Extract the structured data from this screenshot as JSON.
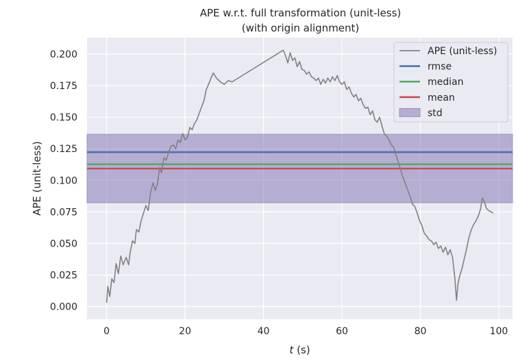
{
  "chart_data": {
    "type": "line",
    "title": "APE w.r.t. full transformation (unit-less)",
    "subtitle": "(with origin alignment)",
    "xlabel_italic": "t",
    "xlabel_rest": " (s)",
    "ylabel": "APE (unit-less)",
    "xlim": [
      -5,
      103.5
    ],
    "ylim": [
      -0.01,
      0.213
    ],
    "x_ticks": [
      0,
      20,
      40,
      60,
      80,
      100
    ],
    "y_ticks": [
      0.0,
      0.025,
      0.05,
      0.075,
      0.1,
      0.125,
      0.15,
      0.175,
      0.2
    ],
    "y_tick_labels": [
      "0.000",
      "0.025",
      "0.050",
      "0.075",
      "0.100",
      "0.125",
      "0.150",
      "0.175",
      "0.200"
    ],
    "grid": true,
    "legend_position": "top-right",
    "series": [
      {
        "name": "APE (unit-less)",
        "color": "#808080",
        "points": [
          [
            0.0,
            0.003
          ],
          [
            0.3,
            0.016
          ],
          [
            0.8,
            0.008
          ],
          [
            1.3,
            0.022
          ],
          [
            1.9,
            0.019
          ],
          [
            2.4,
            0.034
          ],
          [
            3.0,
            0.026
          ],
          [
            3.6,
            0.04
          ],
          [
            4.2,
            0.033
          ],
          [
            5.0,
            0.039
          ],
          [
            5.6,
            0.033
          ],
          [
            6.0,
            0.043
          ],
          [
            6.6,
            0.052
          ],
          [
            7.2,
            0.05
          ],
          [
            7.6,
            0.061
          ],
          [
            8.2,
            0.059
          ],
          [
            8.8,
            0.068
          ],
          [
            9.4,
            0.074
          ],
          [
            10.0,
            0.08
          ],
          [
            10.6,
            0.076
          ],
          [
            11.2,
            0.09
          ],
          [
            11.8,
            0.098
          ],
          [
            12.4,
            0.092
          ],
          [
            13.0,
            0.098
          ],
          [
            13.5,
            0.11
          ],
          [
            14.0,
            0.106
          ],
          [
            14.6,
            0.118
          ],
          [
            15.2,
            0.116
          ],
          [
            15.8,
            0.122
          ],
          [
            16.4,
            0.127
          ],
          [
            17.0,
            0.128
          ],
          [
            17.6,
            0.125
          ],
          [
            18.2,
            0.132
          ],
          [
            18.8,
            0.13
          ],
          [
            19.4,
            0.137
          ],
          [
            20.0,
            0.132
          ],
          [
            20.6,
            0.134
          ],
          [
            21.2,
            0.142
          ],
          [
            21.8,
            0.14
          ],
          [
            22.4,
            0.145
          ],
          [
            23.0,
            0.148
          ],
          [
            23.6,
            0.153
          ],
          [
            24.2,
            0.158
          ],
          [
            24.8,
            0.163
          ],
          [
            25.4,
            0.172
          ],
          [
            26.0,
            0.176
          ],
          [
            26.6,
            0.181
          ],
          [
            27.2,
            0.185
          ],
          [
            28.0,
            0.181
          ],
          [
            29.0,
            0.178
          ],
          [
            30.0,
            0.176
          ],
          [
            31.0,
            0.179
          ],
          [
            32.0,
            0.178
          ],
          [
            45.0,
            0.203
          ],
          [
            45.6,
            0.199
          ],
          [
            46.2,
            0.193
          ],
          [
            46.8,
            0.201
          ],
          [
            47.4,
            0.195
          ],
          [
            48.0,
            0.197
          ],
          [
            48.6,
            0.19
          ],
          [
            49.2,
            0.194
          ],
          [
            49.8,
            0.188
          ],
          [
            50.4,
            0.187
          ],
          [
            51.0,
            0.184
          ],
          [
            51.6,
            0.186
          ],
          [
            52.2,
            0.182
          ],
          [
            52.8,
            0.181
          ],
          [
            53.4,
            0.179
          ],
          [
            54.0,
            0.181
          ],
          [
            54.6,
            0.176
          ],
          [
            55.2,
            0.18
          ],
          [
            55.8,
            0.177
          ],
          [
            56.4,
            0.181
          ],
          [
            57.0,
            0.178
          ],
          [
            57.6,
            0.182
          ],
          [
            58.2,
            0.179
          ],
          [
            58.8,
            0.183
          ],
          [
            59.4,
            0.178
          ],
          [
            60.0,
            0.176
          ],
          [
            60.6,
            0.178
          ],
          [
            61.2,
            0.172
          ],
          [
            61.8,
            0.174
          ],
          [
            62.4,
            0.169
          ],
          [
            63.0,
            0.166
          ],
          [
            63.6,
            0.168
          ],
          [
            64.2,
            0.163
          ],
          [
            64.8,
            0.165
          ],
          [
            65.4,
            0.16
          ],
          [
            66.0,
            0.157
          ],
          [
            66.6,
            0.158
          ],
          [
            67.2,
            0.152
          ],
          [
            67.8,
            0.155
          ],
          [
            68.4,
            0.148
          ],
          [
            69.0,
            0.146
          ],
          [
            69.6,
            0.15
          ],
          [
            70.2,
            0.143
          ],
          [
            70.8,
            0.137
          ],
          [
            71.4,
            0.135
          ],
          [
            72.0,
            0.132
          ],
          [
            72.6,
            0.128
          ],
          [
            73.2,
            0.126
          ],
          [
            73.8,
            0.12
          ],
          [
            74.4,
            0.114
          ],
          [
            75.0,
            0.108
          ],
          [
            75.6,
            0.102
          ],
          [
            76.2,
            0.097
          ],
          [
            76.8,
            0.092
          ],
          [
            77.4,
            0.087
          ],
          [
            78.0,
            0.081
          ],
          [
            78.6,
            0.079
          ],
          [
            79.2,
            0.074
          ],
          [
            79.8,
            0.068
          ],
          [
            80.4,
            0.064
          ],
          [
            81.0,
            0.058
          ],
          [
            81.6,
            0.056
          ],
          [
            82.2,
            0.053
          ],
          [
            82.8,
            0.052
          ],
          [
            83.4,
            0.049
          ],
          [
            84.0,
            0.051
          ],
          [
            84.6,
            0.046
          ],
          [
            85.2,
            0.048
          ],
          [
            85.8,
            0.043
          ],
          [
            86.4,
            0.047
          ],
          [
            87.0,
            0.041
          ],
          [
            87.6,
            0.045
          ],
          [
            88.2,
            0.039
          ],
          [
            88.8,
            0.022
          ],
          [
            89.2,
            0.005
          ],
          [
            89.6,
            0.018
          ],
          [
            90.0,
            0.024
          ],
          [
            90.6,
            0.03
          ],
          [
            91.2,
            0.038
          ],
          [
            91.8,
            0.046
          ],
          [
            92.4,
            0.055
          ],
          [
            93.0,
            0.061
          ],
          [
            93.6,
            0.065
          ],
          [
            94.2,
            0.068
          ],
          [
            94.8,
            0.072
          ],
          [
            95.3,
            0.077
          ],
          [
            95.8,
            0.086
          ],
          [
            96.3,
            0.083
          ],
          [
            96.8,
            0.078
          ],
          [
            97.4,
            0.076
          ],
          [
            98.0,
            0.075
          ],
          [
            98.6,
            0.074
          ]
        ]
      }
    ],
    "stats": {
      "rmse": {
        "name": "rmse",
        "value": 0.1223,
        "color": "#4c72b0"
      },
      "median": {
        "name": "median",
        "value": 0.1127,
        "color": "#55a868"
      },
      "mean": {
        "name": "mean",
        "value": 0.1093,
        "color": "#c44e52"
      },
      "std": {
        "name": "std",
        "lower": 0.0822,
        "upper": 0.1365,
        "color": "#8172b2"
      }
    },
    "legend_labels": [
      "APE (unit-less)",
      "rmse",
      "median",
      "mean",
      "std"
    ],
    "colors": {
      "background": "#eaeaf2",
      "grid": "#ffffff",
      "text": "#262626"
    }
  }
}
